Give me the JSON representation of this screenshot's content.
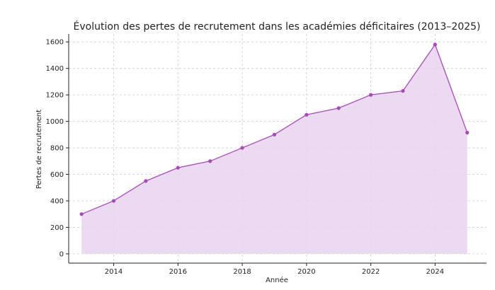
{
  "chart_data": {
    "type": "area",
    "title": "Évolution des pertes de recrutement dans les académies déficitaires (2013–2025)",
    "xlabel": "Année",
    "ylabel": "Pertes de recrutement",
    "x": [
      2013,
      2014,
      2015,
      2016,
      2017,
      2018,
      2019,
      2020,
      2021,
      2022,
      2023,
      2024,
      2025
    ],
    "series": [
      {
        "values": [
          300,
          400,
          550,
          650,
          700,
          800,
          900,
          1050,
          1100,
          1200,
          1230,
          1580,
          915
        ]
      }
    ],
    "xticks": [
      2014,
      2016,
      2018,
      2020,
      2022,
      2024
    ],
    "yticks": [
      0,
      200,
      400,
      600,
      800,
      1000,
      1200,
      1400,
      1600
    ],
    "xlim": [
      2012.6,
      2025.6
    ],
    "ylim": [
      -70,
      1660
    ],
    "grid": true,
    "colors": {
      "line": "#ab47bc",
      "fill": "#e9d3f0",
      "grid": "#cccccc",
      "axis": "#222222"
    }
  }
}
